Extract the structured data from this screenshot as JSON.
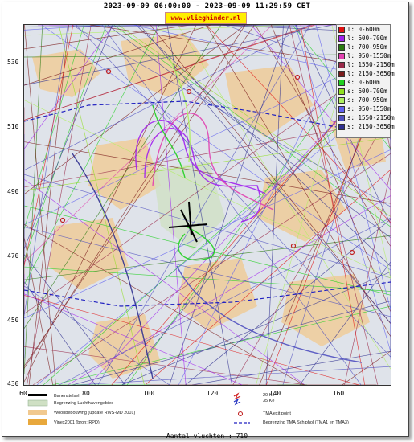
{
  "header": {
    "title": "2023-09-09 06:00:00 - 2023-09-09 11:29:59 CET",
    "site": "www.vlieghinder.nl"
  },
  "axes": {
    "y_ticks": [
      "530",
      "510",
      "490",
      "470",
      "450",
      "430"
    ],
    "x_ticks": [
      "60",
      "80",
      "100",
      "120",
      "140",
      "160"
    ]
  },
  "legend": {
    "items": [
      {
        "label": "l: 0-600m",
        "color": "#e01010"
      },
      {
        "label": "l: 600-700m",
        "color": "#a020f0"
      },
      {
        "label": "l: 700-950m",
        "color": "#2a7a10"
      },
      {
        "label": "l: 950-1550m",
        "color": "#e040b0"
      },
      {
        "label": "l: 1550-2150m",
        "color": "#9a2a4a"
      },
      {
        "label": "l: 2150-3650m",
        "color": "#7a1a1a"
      },
      {
        "label": "s: 0-600m",
        "color": "#20d020"
      },
      {
        "label": "s: 600-700m",
        "color": "#90e020"
      },
      {
        "label": "s: 700-950m",
        "color": "#b0f060"
      },
      {
        "label": "s: 950-1550m",
        "color": "#6060f0"
      },
      {
        "label": "s: 1550-2150m",
        "color": "#5050c0"
      },
      {
        "label": "s: 2150-3650m",
        "color": "#303090"
      }
    ]
  },
  "key": {
    "runway": "Banenstelsel",
    "airport_boundary": "Begrenzing Luchthavengebied",
    "housing": "Woonbebouwing (update RWS-MD 2001)",
    "vinex": "Vinex2001 (bron: RPD)",
    "kw20": "20 Ke",
    "kw35": "35 Ke",
    "tma_exit": "TMA exit point",
    "tma_boundary": "Begrenzing TMA Schiphol  (TMA1 en TMA3)"
  },
  "footer": {
    "count": "Aantal vluchten : 710"
  }
}
